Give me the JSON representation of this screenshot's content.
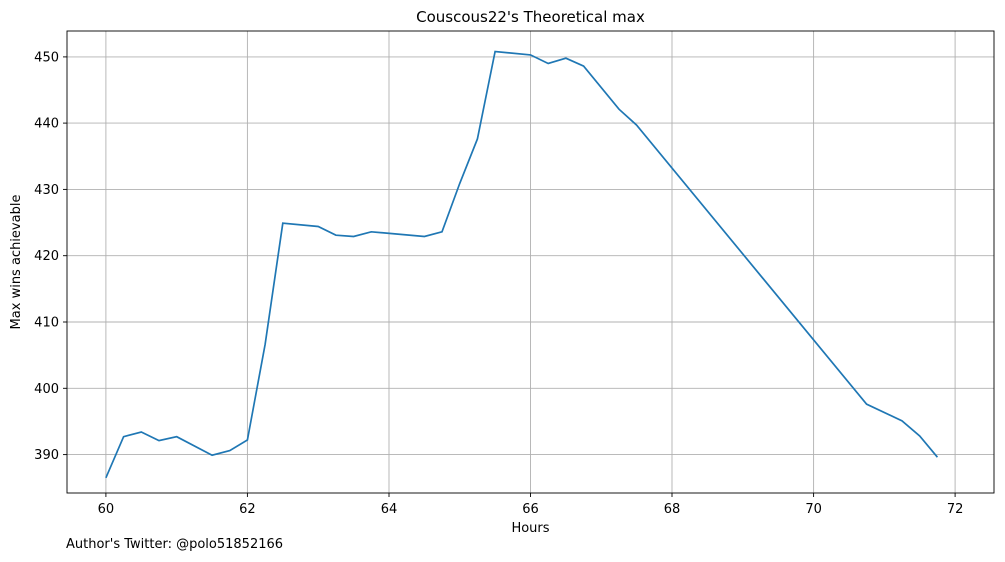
{
  "chart_data": {
    "type": "line",
    "title": "Couscous22's Theoretical max",
    "xlabel": "Hours",
    "ylabel": "Max wins achievable",
    "xlim": [
      59.45,
      72.55
    ],
    "ylim": [
      384.2,
      453.9
    ],
    "xticks": [
      60,
      62,
      64,
      66,
      68,
      70,
      72
    ],
    "yticks": [
      390,
      400,
      410,
      420,
      430,
      440,
      450
    ],
    "grid": true,
    "color": "#1f77b4",
    "x": [
      60.0,
      60.25,
      60.5,
      60.75,
      61.0,
      61.5,
      61.75,
      62.0,
      62.25,
      62.5,
      63.0,
      63.25,
      63.5,
      63.75,
      64.5,
      64.75,
      65.0,
      65.25,
      65.5,
      66.0,
      66.25,
      66.5,
      66.75,
      67.25,
      67.5,
      70.75,
      71.25,
      71.5,
      71.75
    ],
    "y": [
      386.5,
      392.7,
      393.4,
      392.1,
      392.7,
      389.9,
      390.6,
      392.2,
      406.6,
      424.9,
      424.4,
      423.1,
      422.9,
      423.6,
      422.9,
      423.6,
      430.9,
      437.6,
      450.8,
      450.3,
      449.0,
      449.8,
      448.6,
      442.1,
      439.7,
      397.6,
      395.1,
      392.8,
      389.6
    ]
  },
  "footer": {
    "text": "Author's Twitter: @polo51852166"
  }
}
